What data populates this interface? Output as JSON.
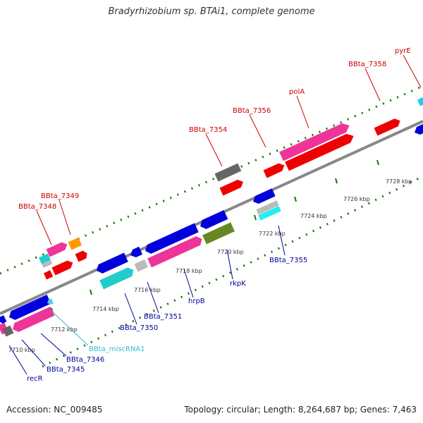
{
  "title": "Bradyrhizobium sp. BTAi1, complete genome",
  "footer": {
    "accession": "Accession: NC_009485",
    "summary": "Topology: circular; Length: 8,264,687 bp; Genes: 7,463"
  },
  "ticks": [
    "7710 kbp",
    "7712 kbp",
    "7714 kbp",
    "7716 kbp",
    "7718 kbp",
    "7720 kbp",
    "7722 kbp",
    "7724 kbp",
    "7726 kbp",
    "7728 kbp"
  ],
  "labels": {
    "bbta_7348": "BBta_7348",
    "bbta_7349": "BBta_7349",
    "bbta_7354": "BBta_7354",
    "bbta_7356": "BBta_7356",
    "pola": "polA",
    "bbta_7358": "BBta_7358",
    "pyre": "pyrE",
    "recr": "recR",
    "bbta_7345": "BBta_7345",
    "bbta_7346": "BBta_7346",
    "bbta_miscrna1": "BBta_miscRNA1",
    "bbta_7350": "BBta_7350",
    "bbta_7351": "BBta_7351",
    "hrpb": "hrpB",
    "rkpk": "rkpK",
    "bbta_7355": "BBta_7355"
  },
  "colors": {
    "forward_label": "#cc0000",
    "reverse_label": "#000099",
    "rna_label": "#33bbcc",
    "backbone": "#888888",
    "tick_mark": "#117700",
    "gene_red": "#ee0000",
    "gene_pink": "#ee3399",
    "gene_blue": "#0000dd",
    "gene_cyan": "#22cccc",
    "gene_orange": "#ff9900",
    "gene_grey": "#666666",
    "gene_light": "#bbbbbb",
    "gene_olive": "#668822"
  }
}
